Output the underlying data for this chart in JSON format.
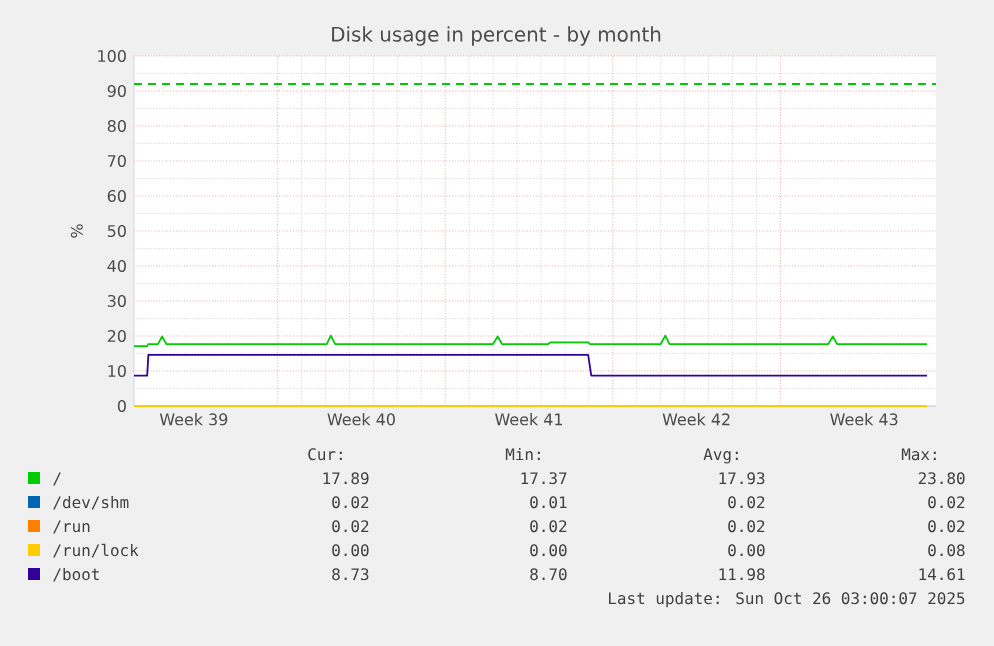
{
  "chart_data": {
    "type": "line",
    "title": "Disk usage in percent - by month",
    "ylabel": "%",
    "xlim": [
      "2025-09-23T00:00",
      "2025-10-26T12:00"
    ],
    "ylim": [
      0,
      100
    ],
    "xticks": [
      {
        "value": "2025-09-25T12:00",
        "label": "Week 39"
      },
      {
        "value": "2025-09-29",
        "label": null
      },
      {
        "value": "2025-10-02T12:00",
        "label": "Week 40"
      },
      {
        "value": "2025-10-06",
        "label": null
      },
      {
        "value": "2025-10-09T12:00",
        "label": "Week 41"
      },
      {
        "value": "2025-10-13",
        "label": null
      },
      {
        "value": "2025-10-16T12:00",
        "label": "Week 42"
      },
      {
        "value": "2025-10-20",
        "label": null
      },
      {
        "value": "2025-10-23T12:00",
        "label": "Week 43"
      }
    ],
    "yticks": [
      0,
      10,
      20,
      30,
      40,
      50,
      60,
      70,
      80,
      90,
      100
    ],
    "grid": true,
    "legend": "bottom",
    "marker": "none",
    "line_style": "solid",
    "series": [
      {
        "name": "/",
        "color": "#00cc00",
        "x": [
          "2025-09-23T00:00",
          "2025-09-23T13:12",
          "2025-09-23T14:24",
          "2025-09-24T00:00",
          "2025-09-24T04:05",
          "2025-09-24T08:24",
          "2025-10-01T01:12",
          "2025-10-01T05:17",
          "2025-10-01T09:36",
          "2025-10-08T00:00",
          "2025-10-08T04:34",
          "2025-10-08T08:53",
          "2025-10-10T07:12",
          "2025-10-10T09:36",
          "2025-10-11T23:17",
          "2025-10-12T01:12",
          "2025-10-15T00:00",
          "2025-10-15T04:34",
          "2025-10-15T08:53",
          "2025-10-22T00:00",
          "2025-10-22T04:34",
          "2025-10-22T08:53",
          "2025-10-26T03:00"
        ],
        "values": [
          17.1,
          17.1,
          17.7,
          17.7,
          19.9,
          17.7,
          17.7,
          20.1,
          17.7,
          17.7,
          19.9,
          17.7,
          17.7,
          18.2,
          18.2,
          17.7,
          17.7,
          20.1,
          17.7,
          17.7,
          19.9,
          17.7,
          17.7
        ]
      },
      {
        "name": "/dev/shm",
        "color": "#0066b3",
        "values": [
          null
        ]
      },
      {
        "name": "/run",
        "color": "#ff8000",
        "values": [
          null
        ]
      },
      {
        "name": "/run/lock",
        "color": "#ffcc00",
        "x": [
          "2025-09-23T00:00",
          "2025-10-26T03:00"
        ],
        "values": [
          0,
          0
        ]
      },
      {
        "name": "/boot",
        "color": "#330099",
        "x": [
          "2025-09-23T00:00",
          "2025-09-23T13:12",
          "2025-09-23T14:24",
          "2025-10-11T23:17",
          "2025-10-12T02:24",
          "2025-10-26T03:00"
        ],
        "values": [
          8.7,
          8.7,
          14.6,
          14.6,
          8.7,
          8.7
        ]
      }
    ],
    "ref_lines": [
      {
        "axis": "y",
        "value": 92,
        "color": "#00cc00",
        "line_style": "dashed"
      }
    ],
    "annotations": [
      "Cur:",
      "Min:",
      "Avg:",
      "Max:",
      "17.89",
      "17.37",
      "17.93",
      "23.80",
      "0.02",
      "0.01",
      "0.02",
      "0.02",
      "0.02",
      "0.02",
      "0.02",
      "0.02",
      "0.00",
      "0.00",
      "0.00",
      "0.08",
      "8.73",
      "8.70",
      "11.98",
      "14.61",
      "Last update: Sun Oct 26 03:00:07 2025"
    ]
  }
}
